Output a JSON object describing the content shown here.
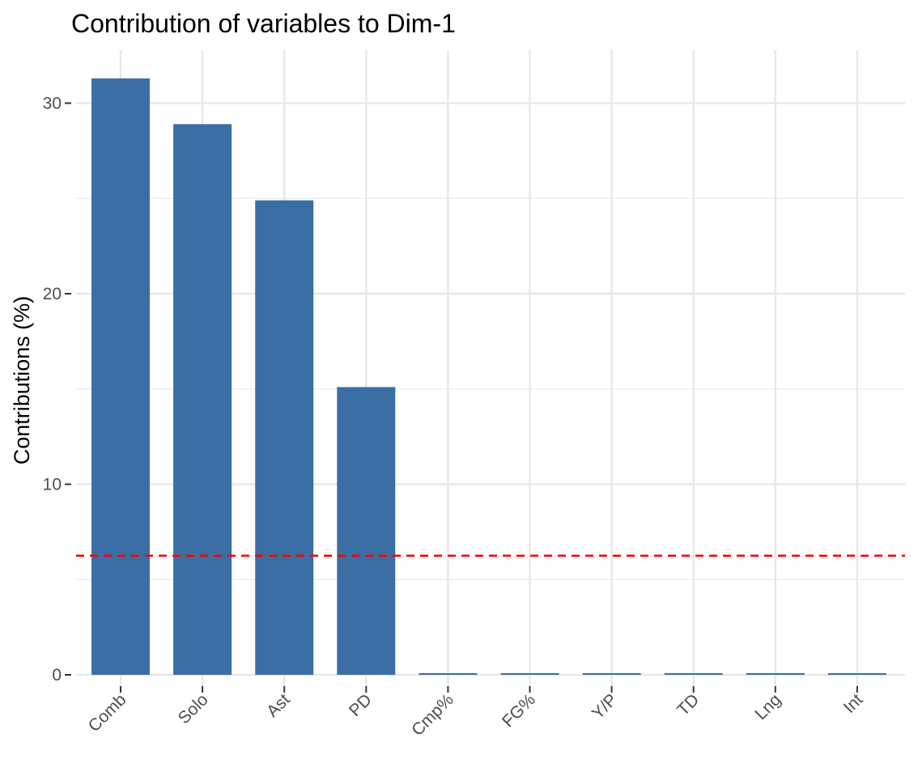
{
  "chart_data": {
    "type": "bar",
    "title": "Contribution of variables to Dim-1",
    "xlabel": "",
    "ylabel": "Contributions (%)",
    "categories": [
      "Comb",
      "Solo",
      "Ast",
      "PD",
      "Cmp%",
      "FG%",
      "Y/P",
      "TD",
      "Lng",
      "Int"
    ],
    "values": [
      31.3,
      28.9,
      24.9,
      15.1,
      0.05,
      0.05,
      0.05,
      0.05,
      0.05,
      0.05
    ],
    "ylim": [
      0,
      32.5
    ],
    "yticks": [
      0,
      10,
      20,
      30
    ],
    "reference_line": {
      "value": 6.25,
      "style": "dashed",
      "color": "#ff0000"
    },
    "grid": true,
    "legend": "none",
    "bar_color": "#3a6ea5"
  }
}
